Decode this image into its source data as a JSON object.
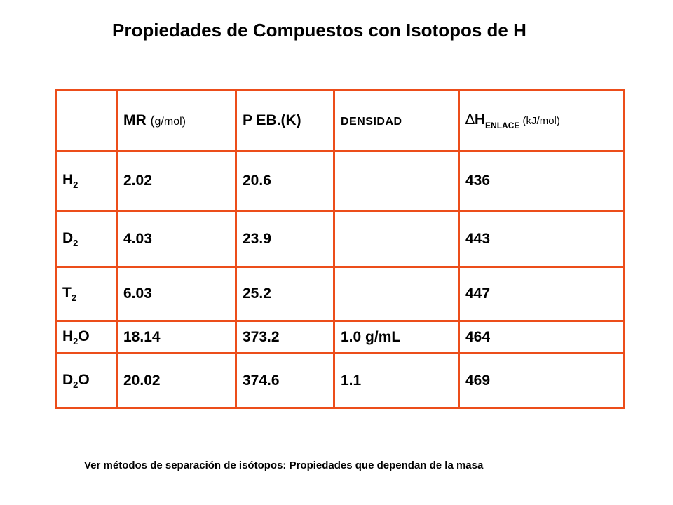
{
  "title": "Propiedades de Compuestos con Isotopos de H",
  "table": {
    "header": {
      "mr_main": "MR",
      "mr_paren_open": "(",
      "mr_unit": "g/mol)",
      "peb_main": "P EB.",
      "peb_paren": "(K)",
      "densidad": "DENSIDAD",
      "h_delta": "∆",
      "h_main": "H",
      "h_sub": "ENLACE",
      "h_unit": " (kJ/mol)"
    },
    "rows": [
      {
        "base": "H",
        "sub": "2",
        "after": "",
        "mr": "2.02",
        "peb": "20.6",
        "dens": "",
        "h": "436"
      },
      {
        "base": "D",
        "sub": "2",
        "after": "",
        "mr": "4.03",
        "peb": "23.9",
        "dens": "",
        "h": "443"
      },
      {
        "base": "T",
        "sub": "2",
        "after": "",
        "mr": "6.03",
        "peb": "25.2",
        "dens": "",
        "h": "447"
      },
      {
        "base": "H",
        "sub": "2",
        "after": "O",
        "mr": "18.14",
        "peb": "373.2",
        "dens": "1.0 g/mL",
        "h": "464"
      },
      {
        "base": "D",
        "sub": "2",
        "after": "O",
        "mr": "20.02",
        "peb": "374.6",
        "dens": "1.1",
        "h": "469"
      }
    ]
  },
  "footer": "Ver métodos de separación de isótopos: Propiedades que dependan de la masa",
  "colors": {
    "border": "#ec4d1a",
    "text": "#000000",
    "background": "#ffffff"
  }
}
